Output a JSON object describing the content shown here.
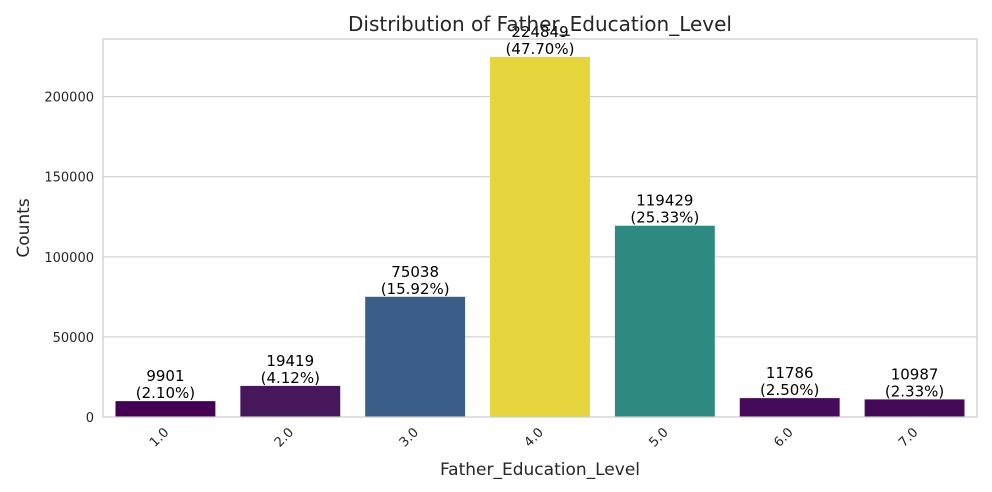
{
  "chart_data": {
    "type": "bar",
    "title": "Distribution of Father_Education_Level",
    "xlabel": "Father_Education_Level",
    "ylabel": "Counts",
    "categories": [
      "1.0",
      "2.0",
      "3.0",
      "4.0",
      "5.0",
      "6.0",
      "7.0"
    ],
    "values": [
      9901,
      19419,
      75038,
      224849,
      119429,
      11786,
      10987
    ],
    "percent_labels": [
      "(2.10%)",
      "(4.12%)",
      "(15.92%)",
      "(47.70%)",
      "(25.33%)",
      "(2.50%)",
      "(2.33%)"
    ],
    "count_labels": [
      "9901",
      "19419",
      "75038",
      "224849",
      "119429",
      "11786",
      "10987"
    ],
    "colors": [
      "#440154",
      "#46175a",
      "#3b5e89",
      "#e6d53c",
      "#2e8a80",
      "#450a5a",
      "#440a58"
    ],
    "ylim": [
      0,
      236000
    ],
    "yticks": [
      0,
      50000,
      100000,
      150000,
      200000
    ],
    "ytick_labels": [
      "0",
      "50000",
      "100000",
      "150000",
      "200000"
    ],
    "grid": true,
    "xtick_rotation": "45 degrees"
  }
}
